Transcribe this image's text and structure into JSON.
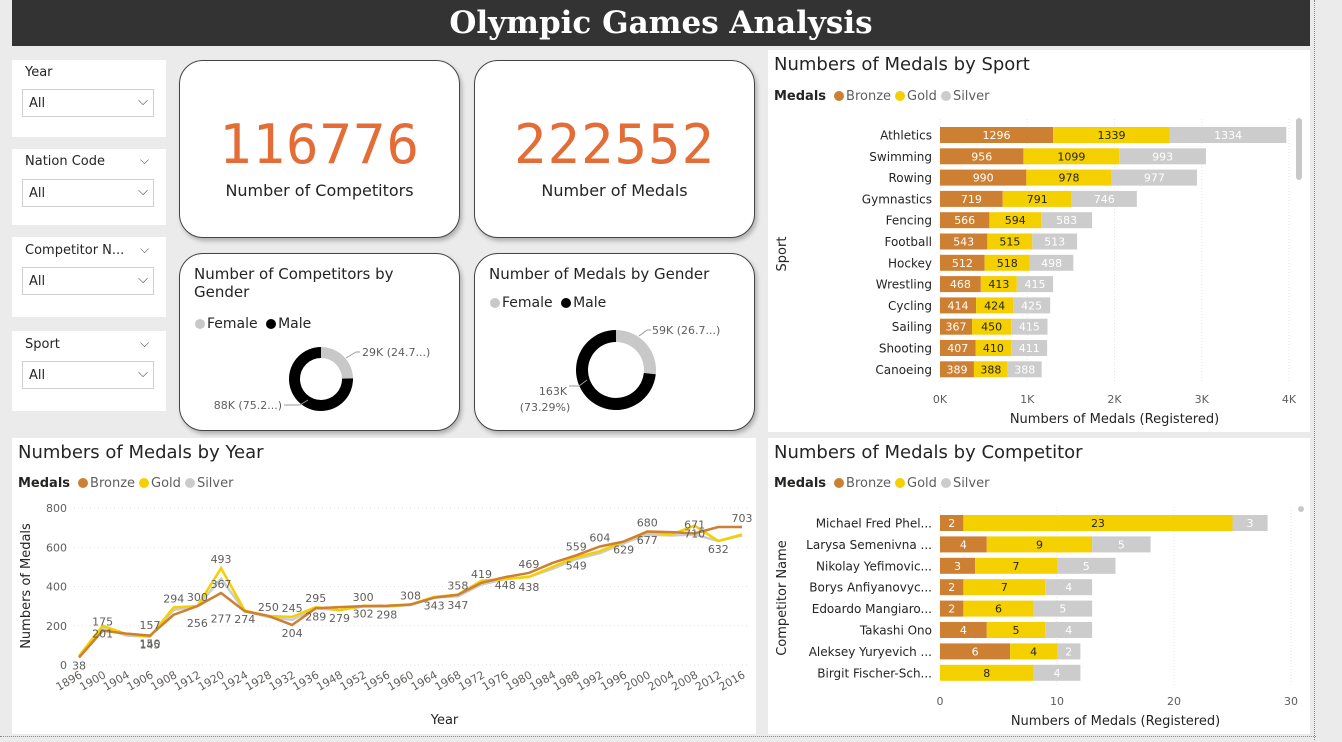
{
  "header": {
    "title": "Olympic Games Analysis"
  },
  "colors": {
    "bronze": "#cd7f32",
    "gold": "#f5d000",
    "silver": "#cccccc",
    "accent": "#e46c37",
    "male": "#000000",
    "female": "#c8c8c8"
  },
  "slicers": [
    {
      "label": "Year",
      "value": "All"
    },
    {
      "label": "Nation Code",
      "value": "All"
    },
    {
      "label": "Competitor N...",
      "value": "All"
    },
    {
      "label": "Sport",
      "value": "All"
    }
  ],
  "kpis": {
    "competitors": {
      "value": "116776",
      "label": "Number of Competitors"
    },
    "medals": {
      "value": "222552",
      "label": "Number of Medals"
    }
  },
  "donuts": {
    "competitors": {
      "title_line1": "Number of Competitors by",
      "title_line2": "Gender",
      "legend_female": "Female",
      "legend_male": "Male",
      "female_label": "29K (24.7...)",
      "male_label": "88K (75.2...)",
      "female_share": 0.247,
      "male_share": 0.753
    },
    "medals": {
      "title_line1": "Number of Medals by Gender",
      "legend_female": "Female",
      "legend_male": "Male",
      "female_label": "59K (26.7...)",
      "male_label_line1": "163K",
      "male_label_line2": "(73.29%)",
      "female_share": 0.2671,
      "male_share": 0.7329
    }
  },
  "legend_texts": {
    "title": "Medals",
    "bronze": "Bronze",
    "gold": "Gold",
    "silver": "Silver"
  },
  "chart_data": [
    {
      "id": "sport",
      "type": "bar",
      "orientation": "horizontal-stacked",
      "title": "Numbers of Medals by Sport",
      "xlabel": "Numbers of Medals (Registered)",
      "ylabel": "Sport",
      "xlim": [
        0,
        4000
      ],
      "xticks": [
        "0K",
        "1K",
        "2K",
        "3K",
        "4K"
      ],
      "categories": [
        "Athletics",
        "Swimming",
        "Rowing",
        "Gymnastics",
        "Fencing",
        "Football",
        "Hockey",
        "Wrestling",
        "Cycling",
        "Sailing",
        "Shooting",
        "Canoeing"
      ],
      "series": [
        {
          "name": "Bronze",
          "values": [
            1296,
            956,
            990,
            719,
            566,
            543,
            512,
            468,
            414,
            367,
            407,
            389
          ]
        },
        {
          "name": "Gold",
          "values": [
            1339,
            1099,
            978,
            791,
            594,
            515,
            518,
            413,
            424,
            450,
            410,
            388
          ]
        },
        {
          "name": "Silver",
          "values": [
            1334,
            993,
            977,
            746,
            583,
            513,
            498,
            415,
            425,
            415,
            411,
            388
          ]
        }
      ]
    },
    {
      "id": "year",
      "type": "line",
      "title": "Numbers of Medals by Year",
      "xlabel": "Year",
      "ylabel": "Numbers of Medals",
      "ylim": [
        0,
        800
      ],
      "yticks": [
        "0",
        "200",
        "400",
        "600",
        "800"
      ],
      "x": [
        "1896",
        "1900",
        "1904",
        "1906",
        "1908",
        "1912",
        "1920",
        "1924",
        "1928",
        "1932",
        "1936",
        "1948",
        "1952",
        "1956",
        "1960",
        "1964",
        "1968",
        "1972",
        "1976",
        "1980",
        "1984",
        "1988",
        "1992",
        "1996",
        "2000",
        "2004",
        "2008",
        "2012",
        "2016"
      ],
      "series": [
        {
          "name": "Bronze",
          "values": [
            38,
            175,
            160,
            150,
            256,
            300,
            367,
            274,
            250,
            204,
            289,
            295,
            300,
            302,
            308,
            343,
            358,
            419,
            448,
            469,
            520,
            559,
            604,
            629,
            680,
            677,
            671,
            703,
            703
          ]
        },
        {
          "name": "Gold",
          "values": [
            46,
            201,
            157,
            145,
            294,
            300,
            493,
            277,
            250,
            245,
            295,
            279,
            302,
            298,
            308,
            347,
            358,
            430,
            438,
            449,
            500,
            549,
            580,
            629,
            677,
            665,
            710,
            632,
            665
          ]
        },
        {
          "name": "Silver",
          "values": [
            42,
            190,
            150,
            145,
            280,
            300,
            440,
            274,
            245,
            230,
            289,
            279,
            298,
            298,
            305,
            343,
            350,
            410,
            438,
            449,
            490,
            540,
            570,
            620,
            665,
            660,
            665,
            632,
            660
          ]
        }
      ],
      "data_labels": [
        {
          "x": "1896",
          "text": "38",
          "value": 38,
          "below": true
        },
        {
          "x": "1900",
          "text": "175",
          "value": 175,
          "below": false
        },
        {
          "x": "1900",
          "text": "201",
          "value": 201,
          "below": true
        },
        {
          "x": "1906",
          "text": "157",
          "value": 157,
          "below": false
        },
        {
          "x": "1906",
          "text": "150",
          "value": 150,
          "below": true
        },
        {
          "x": "1906",
          "text": "145",
          "value": 145,
          "below": true
        },
        {
          "x": "1908",
          "text": "294",
          "value": 294,
          "below": false
        },
        {
          "x": "1912",
          "text": "300",
          "value": 300,
          "below": false
        },
        {
          "x": "1912",
          "text": "256",
          "value": 256,
          "below": true
        },
        {
          "x": "1920",
          "text": "493",
          "value": 493,
          "below": false
        },
        {
          "x": "1920",
          "text": "367",
          "value": 367,
          "below": false
        },
        {
          "x": "1920",
          "text": "277",
          "value": 277,
          "below": true
        },
        {
          "x": "1924",
          "text": "274",
          "value": 274,
          "below": true
        },
        {
          "x": "1928",
          "text": "250",
          "value": 250,
          "below": false
        },
        {
          "x": "1932",
          "text": "245",
          "value": 245,
          "below": false
        },
        {
          "x": "1932",
          "text": "204",
          "value": 204,
          "below": true
        },
        {
          "x": "1936",
          "text": "295",
          "value": 295,
          "below": false
        },
        {
          "x": "1936",
          "text": "289",
          "value": 289,
          "below": true
        },
        {
          "x": "1948",
          "text": "279",
          "value": 279,
          "below": true
        },
        {
          "x": "1952",
          "text": "300",
          "value": 300,
          "below": false
        },
        {
          "x": "1952",
          "text": "302",
          "value": 302,
          "below": true
        },
        {
          "x": "1956",
          "text": "298",
          "value": 298,
          "below": true
        },
        {
          "x": "1960",
          "text": "308",
          "value": 308,
          "below": false
        },
        {
          "x": "1964",
          "text": "343",
          "value": 343,
          "below": true
        },
        {
          "x": "1968",
          "text": "358",
          "value": 358,
          "below": false
        },
        {
          "x": "1968",
          "text": "347",
          "value": 347,
          "below": true
        },
        {
          "x": "1972",
          "text": "419",
          "value": 419,
          "below": false
        },
        {
          "x": "1976",
          "text": "448",
          "value": 448,
          "below": true
        },
        {
          "x": "1980",
          "text": "469",
          "value": 469,
          "below": false
        },
        {
          "x": "1980",
          "text": "438",
          "value": 438,
          "below": true
        },
        {
          "x": "1988",
          "text": "559",
          "value": 559,
          "below": false
        },
        {
          "x": "1988",
          "text": "549",
          "value": 549,
          "below": true
        },
        {
          "x": "1992",
          "text": "604",
          "value": 604,
          "below": false
        },
        {
          "x": "1996",
          "text": "629",
          "value": 629,
          "below": true
        },
        {
          "x": "2000",
          "text": "680",
          "value": 680,
          "below": false
        },
        {
          "x": "2000",
          "text": "677",
          "value": 677,
          "below": true
        },
        {
          "x": "2008",
          "text": "671",
          "value": 671,
          "below": false
        },
        {
          "x": "2008",
          "text": "710",
          "value": 710,
          "below": true
        },
        {
          "x": "2012",
          "text": "632",
          "value": 632,
          "below": true
        },
        {
          "x": "2016",
          "text": "703",
          "value": 703,
          "below": false
        }
      ]
    },
    {
      "id": "competitor",
      "type": "bar",
      "orientation": "horizontal-stacked",
      "title": "Numbers of Medals by Competitor",
      "xlabel": "Numbers of Medals (Registered)",
      "ylabel": "Competitor Name",
      "xlim": [
        0,
        30
      ],
      "xticks": [
        "0",
        "10",
        "20",
        "30"
      ],
      "categories": [
        "Michael Fred Phel...",
        "Larysa Semenivna ...",
        "Nikolay Yefimovic...",
        "Borys Anfiyanovyc...",
        "Edoardo Mangiaro...",
        "Takashi Ono",
        "Aleksey Yuryevich ...",
        "Birgit Fischer-Sch..."
      ],
      "series": [
        {
          "name": "Bronze",
          "values": [
            2,
            4,
            3,
            2,
            2,
            4,
            6,
            0
          ]
        },
        {
          "name": "Gold",
          "values": [
            23,
            9,
            7,
            7,
            6,
            5,
            4,
            8
          ]
        },
        {
          "name": "Silver",
          "values": [
            3,
            5,
            5,
            4,
            5,
            4,
            2,
            4
          ]
        }
      ]
    }
  ]
}
